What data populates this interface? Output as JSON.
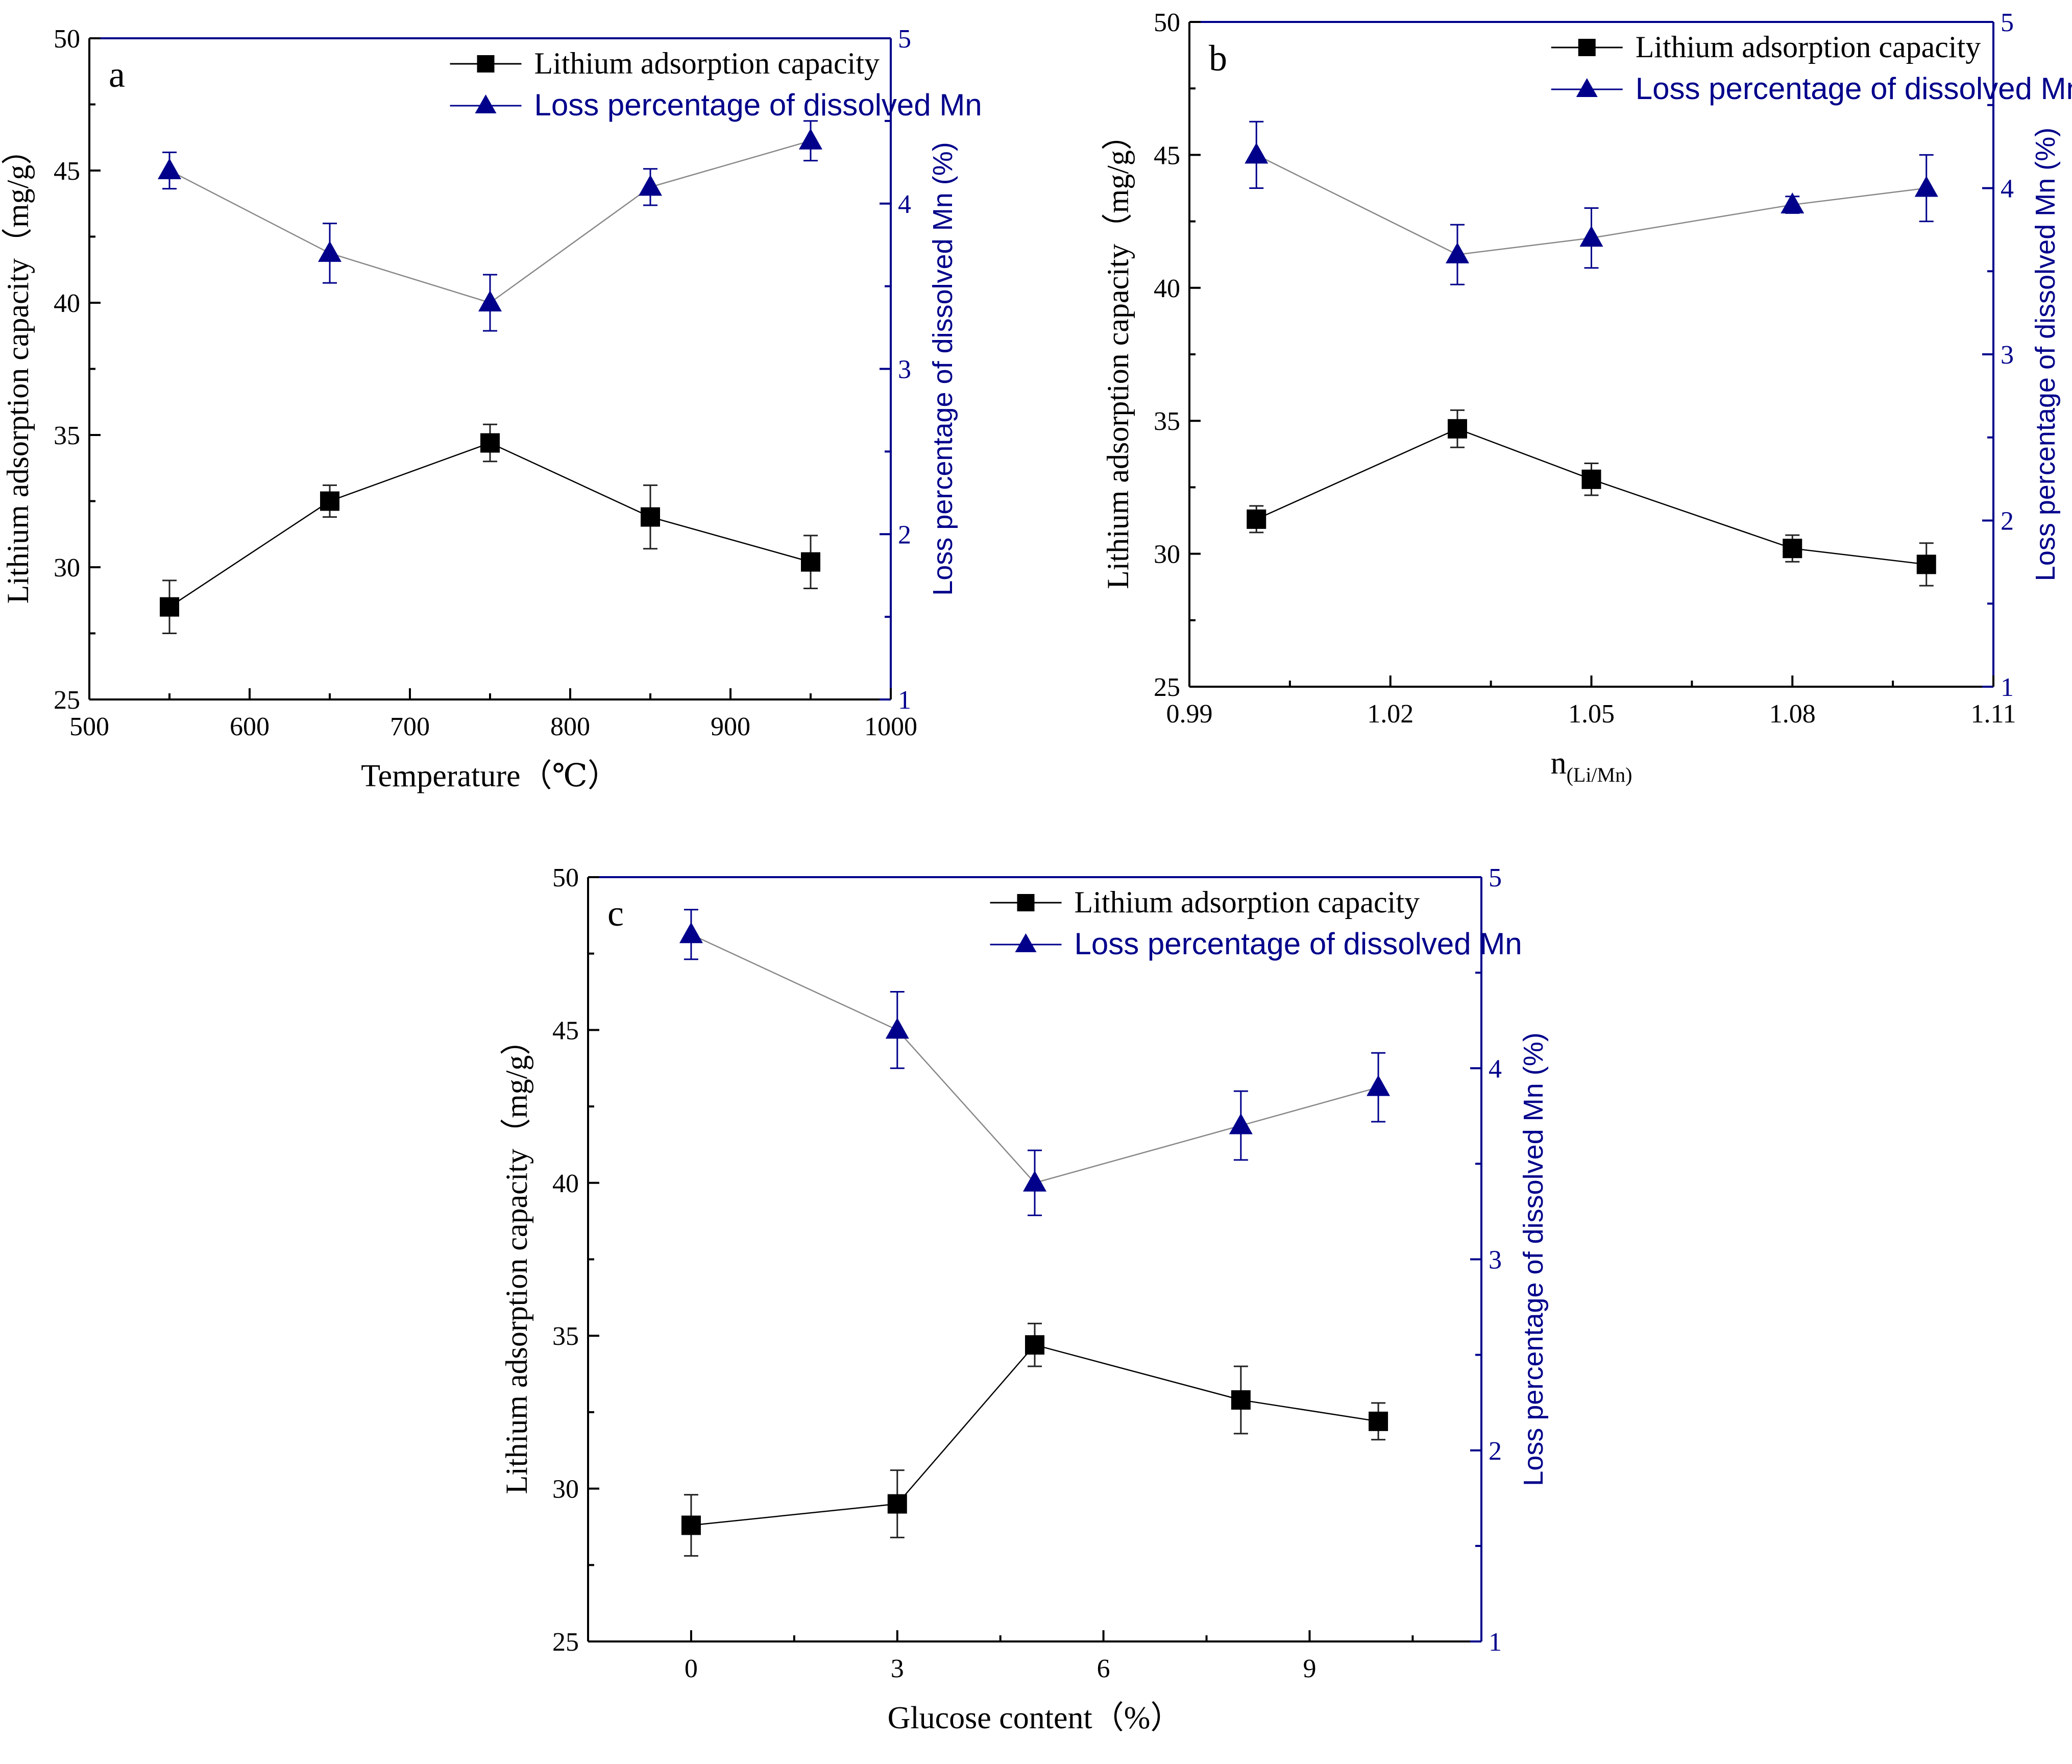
{
  "colors": {
    "axis_right": "#00008B",
    "series_capacity": "#000000",
    "series_mn_marker": "#00008B",
    "series_mn_line": "#888888",
    "legend_mn_text": "#00008B"
  },
  "chart_data": [
    {
      "panel_label": "a",
      "type": "line",
      "xlabel": "Temperature（℃）",
      "xlabel_sub": "",
      "ylabel": "Lithium adsorption capacity（mg/g）",
      "y2label": "Loss percentage of dissolved Mn (%)",
      "xlim": [
        500,
        1000
      ],
      "ylim": [
        25,
        50
      ],
      "y2lim": [
        1,
        5
      ],
      "xticks": [
        500,
        600,
        700,
        800,
        900,
        1000
      ],
      "xtick_labels": [
        "500",
        "600",
        "700",
        "800",
        "900",
        "1000"
      ],
      "yticks": [
        25,
        30,
        35,
        40,
        45,
        50
      ],
      "ytick_labels": [
        "25",
        "30",
        "35",
        "40",
        "45",
        "50"
      ],
      "y2ticks": [
        1,
        2,
        3,
        4,
        5
      ],
      "y2tick_labels": [
        "1",
        "2",
        "3",
        "4",
        "5"
      ],
      "legend": [
        "Lithium adsorption capacity",
        "Loss percentage of dissolved Mn"
      ],
      "series": [
        {
          "name": "Lithium adsorption capacity",
          "axis": "left",
          "marker": "square",
          "x": [
            550,
            650,
            750,
            850,
            950
          ],
          "values": [
            28.5,
            32.5,
            34.7,
            31.9,
            30.2
          ],
          "errors": [
            1.0,
            0.6,
            0.7,
            1.2,
            1.0
          ]
        },
        {
          "name": "Loss percentage of dissolved Mn",
          "axis": "right",
          "marker": "triangle",
          "x": [
            550,
            650,
            750,
            850,
            950
          ],
          "values": [
            4.2,
            3.7,
            3.4,
            4.1,
            4.38
          ],
          "errors": [
            0.11,
            0.18,
            0.17,
            0.11,
            0.12
          ]
        }
      ]
    },
    {
      "panel_label": "b",
      "type": "line",
      "xlabel": "n",
      "xlabel_sub": "(Li/Mn)",
      "ylabel": "Lithium adsorption capacity（mg/g）",
      "y2label": "Loss percentage of dissolved Mn (%)",
      "xlim": [
        0.99,
        1.11
      ],
      "ylim": [
        25,
        50
      ],
      "y2lim": [
        1,
        5
      ],
      "xticks": [
        0.99,
        1.02,
        1.05,
        1.08,
        1.11
      ],
      "xtick_labels": [
        "0.99",
        "1.02",
        "1.05",
        "1.08",
        "1.11"
      ],
      "yticks": [
        25,
        30,
        35,
        40,
        45,
        50
      ],
      "ytick_labels": [
        "25",
        "30",
        "35",
        "40",
        "45",
        "50"
      ],
      "y2ticks": [
        1,
        2,
        3,
        4,
        5
      ],
      "y2tick_labels": [
        "1",
        "2",
        "3",
        "4",
        "5"
      ],
      "legend": [
        "Lithium adsorption capacity",
        "Loss percentage of dissolved Mn"
      ],
      "series": [
        {
          "name": "Lithium adsorption capacity",
          "axis": "left",
          "marker": "square",
          "x": [
            1.0,
            1.03,
            1.05,
            1.08,
            1.1
          ],
          "values": [
            31.3,
            34.7,
            32.8,
            30.2,
            29.6
          ],
          "errors": [
            0.5,
            0.7,
            0.6,
            0.5,
            0.8
          ]
        },
        {
          "name": "Loss percentage of dissolved Mn",
          "axis": "right",
          "marker": "triangle",
          "x": [
            1.0,
            1.03,
            1.05,
            1.08,
            1.1
          ],
          "values": [
            4.2,
            3.6,
            3.7,
            3.9,
            4.0
          ],
          "errors": [
            0.2,
            0.18,
            0.18,
            0.05,
            0.2
          ]
        }
      ]
    },
    {
      "panel_label": "c",
      "type": "line",
      "xlabel": "Glucose content（%）",
      "xlabel_sub": "",
      "ylabel": "Lithium adsorption capacity（mg/g）",
      "y2label": "Loss percentage of dissolved Mn (%)",
      "xlim": [
        -1.5,
        11.5
      ],
      "ylim": [
        25,
        50
      ],
      "y2lim": [
        1,
        5
      ],
      "xticks": [
        0,
        3,
        6,
        9
      ],
      "xtick_labels": [
        "0",
        "3",
        "6",
        "9"
      ],
      "yticks": [
        25,
        30,
        35,
        40,
        45,
        50
      ],
      "ytick_labels": [
        "25",
        "30",
        "35",
        "40",
        "45",
        "50"
      ],
      "y2ticks": [
        1,
        2,
        3,
        4,
        5
      ],
      "y2tick_labels": [
        "1",
        "2",
        "3",
        "4",
        "5"
      ],
      "legend": [
        "Lithium adsorption capacity",
        "Loss percentage of dissolved Mn"
      ],
      "series": [
        {
          "name": "Lithium adsorption capacity",
          "axis": "left",
          "marker": "square",
          "x": [
            0,
            3,
            5,
            8,
            10
          ],
          "values": [
            28.8,
            29.5,
            34.7,
            32.9,
            32.2
          ],
          "errors": [
            1.0,
            1.1,
            0.7,
            1.1,
            0.6
          ]
        },
        {
          "name": "Loss percentage of dissolved Mn",
          "axis": "right",
          "marker": "triangle",
          "x": [
            0,
            3,
            5,
            8,
            10
          ],
          "values": [
            4.7,
            4.2,
            3.4,
            3.7,
            3.9
          ],
          "errors": [
            0.13,
            0.2,
            0.17,
            0.18,
            0.18
          ]
        }
      ]
    }
  ]
}
